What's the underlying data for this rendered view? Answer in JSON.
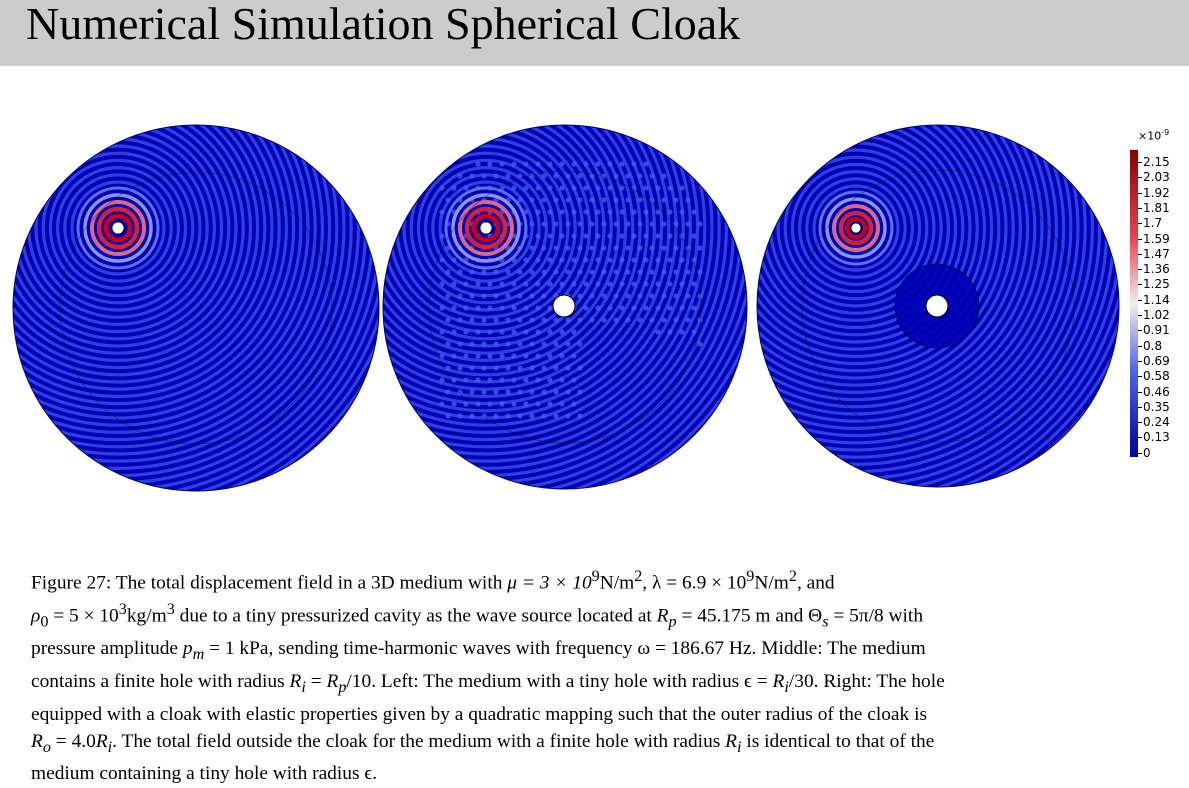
{
  "slide": {
    "title": "Numerical Simulation Spherical Cloak"
  },
  "figure": {
    "panels": [
      {
        "name": "left",
        "hole": false,
        "cloak": false
      },
      {
        "name": "middle",
        "hole": true,
        "cloak": false
      },
      {
        "name": "right",
        "hole": true,
        "cloak": true
      }
    ],
    "colorbar": {
      "multiplier": "×10",
      "exponent": "-9",
      "ticks": [
        "2.15",
        "2.03",
        "1.92",
        "1.81",
        "1.7",
        "1.59",
        "1.47",
        "1.36",
        "1.25",
        "1.14",
        "1.02",
        "0.91",
        "0.8",
        "0.69",
        "0.58",
        "0.46",
        "0.35",
        "0.24",
        "0.13",
        "0"
      ]
    },
    "colors": {
      "title_bg": "#cccccc",
      "field_low": "#00009e",
      "field_high": "#8b0000",
      "field_mid": "#f6ecec"
    }
  },
  "caption": {
    "figure_label": "Figure 27:",
    "line1_text": "The total displacement field in a 3D medium with",
    "mu_eq": "μ = 3 × 10",
    "mu_exp": "9",
    "unit_nm": "N/m",
    "sq": "2",
    "lambda_eq": ", λ = 6.9 × 10",
    "lambda_exp": "9",
    "and_text": ", and",
    "rho_sym": "ρ",
    "rho_sub": "0",
    "rho_eq": " = 5 × 10",
    "rho_exp": "3",
    "unit_kg": "kg/m",
    "cube": "3",
    "line2_text": " due to a tiny pressurized cavity as the wave source located at ",
    "Rp": "R",
    "Rp_sub": "p",
    "Rp_val": " = 45.175 m and Θ",
    "theta_sub": "s",
    "theta_val": " = 5π/8 with",
    "line3_a": "pressure amplitude ",
    "pm": "p",
    "pm_sub": "m",
    "line3_b": " = 1 kPa, sending time-harmonic waves with frequency ω = 186.67 Hz. Middle: The medium",
    "line4_a": "contains a finite hole with radius ",
    "Ri": "R",
    "Ri_sub": "i",
    "line4_b": " = ",
    "Rp2": "R",
    "Rp2_sub": "p",
    "line4_c": "/10. Left: The medium with a tiny hole with radius ϵ = ",
    "Ri2": "R",
    "Ri2_sub": "i",
    "line4_d": "/30. Right: The hole",
    "line5": "equipped with a cloak with elastic properties given by a quadratic mapping such that the outer radius of the cloak is",
    "Ro": "R",
    "Ro_sub": "o",
    "line6_a": " = 4.0",
    "Ri3": "R",
    "Ri3_sub": "i",
    "line6_b": ". The total field outside the cloak for the medium with a finite hole with radius ",
    "Ri4": "R",
    "Ri4_sub": "i",
    "line6_c": " is identical to that of the",
    "line7": "medium containing a tiny hole with radius ϵ."
  }
}
